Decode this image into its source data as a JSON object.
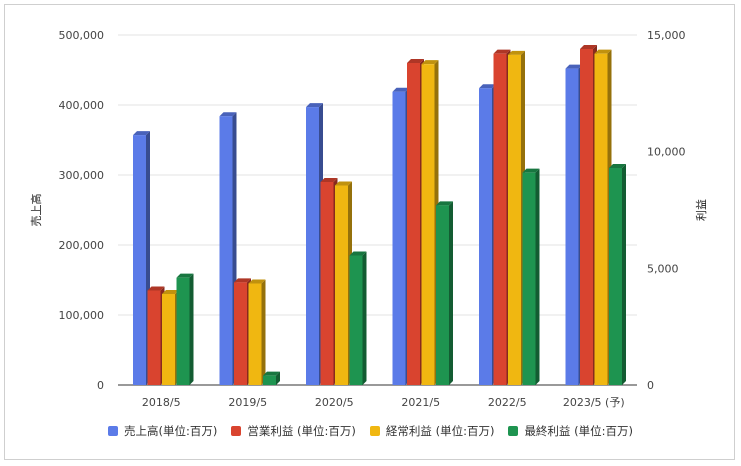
{
  "chart_data": {
    "type": "bar",
    "categories": [
      "2018/5",
      "2019/5",
      "2020/5",
      "2021/5",
      "2022/5",
      "2023/5 (予)"
    ],
    "left_axis": {
      "label": "売上高",
      "ylim": [
        0,
        500000
      ],
      "ticks": [
        "0",
        "100,000",
        "200,000",
        "300,000",
        "400,000",
        "500,000"
      ]
    },
    "right_axis": {
      "label": "利益",
      "ylim": [
        0,
        15000
      ],
      "ticks": [
        "0",
        "5,000",
        "10,000",
        "15,000"
      ]
    },
    "series": [
      {
        "name": "売上高(単位:百万)",
        "axis": "left",
        "color": "#5b7be8",
        "values": [
          357000,
          384000,
          397000,
          419000,
          424000,
          452000
        ]
      },
      {
        "name": "営業利益 (単位:百万)",
        "axis": "right",
        "color": "#d9442f",
        "values": [
          4050,
          4400,
          8700,
          13800,
          14200,
          14400
        ]
      },
      {
        "name": "経常利益 (単位:百万)",
        "axis": "right",
        "color": "#f0b711",
        "values": [
          3900,
          4350,
          8550,
          13750,
          14150,
          14200
        ]
      },
      {
        "name": "最終利益 (単位:百万)",
        "axis": "right",
        "color": "#1e9450",
        "values": [
          4600,
          400,
          5550,
          7700,
          9100,
          9300
        ]
      }
    ],
    "grid": true,
    "legend_position": "bottom"
  }
}
